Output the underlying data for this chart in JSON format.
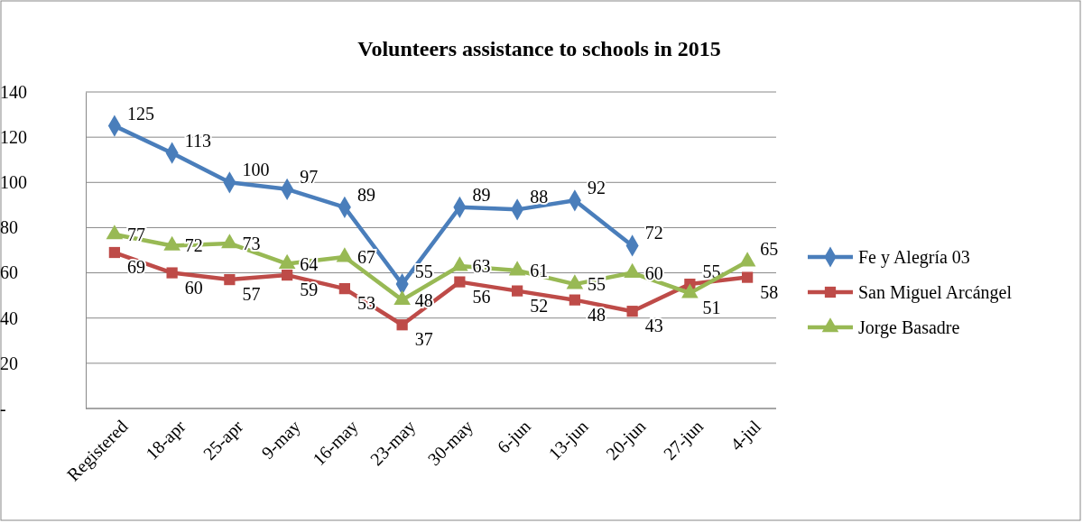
{
  "chart_data": {
    "type": "line",
    "title": "Volunteers assistance to schools in 2015",
    "categories": [
      "Registered",
      "18-apr",
      "25-apr",
      "9-may",
      "16-may",
      "23-may",
      "30-may",
      "6-jun",
      "13-jun",
      "20-jun",
      "27-jun",
      "4-jul"
    ],
    "series": [
      {
        "name": "Fe y Alegría 03",
        "color": "#4a7ebb",
        "marker": "diamond",
        "values": [
          125,
          113,
          100,
          97,
          89,
          55,
          89,
          88,
          92,
          72,
          null,
          null
        ]
      },
      {
        "name": "San Miguel Arcángel",
        "color": "#be4b48",
        "marker": "square",
        "values": [
          69,
          60,
          57,
          59,
          53,
          37,
          56,
          52,
          48,
          43,
          55,
          58
        ]
      },
      {
        "name": "Jorge Basadre",
        "color": "#98b954",
        "marker": "triangle",
        "values": [
          77,
          72,
          73,
          64,
          67,
          48,
          63,
          61,
          55,
          60,
          51,
          65
        ]
      }
    ],
    "ylim": [
      0,
      140
    ],
    "yticks": [
      {
        "value": 0,
        "label": "-"
      },
      20,
      40,
      60,
      80,
      100,
      120,
      140
    ],
    "grid": "y",
    "legend": "right",
    "data_labels": true,
    "line_style": "solid"
  }
}
